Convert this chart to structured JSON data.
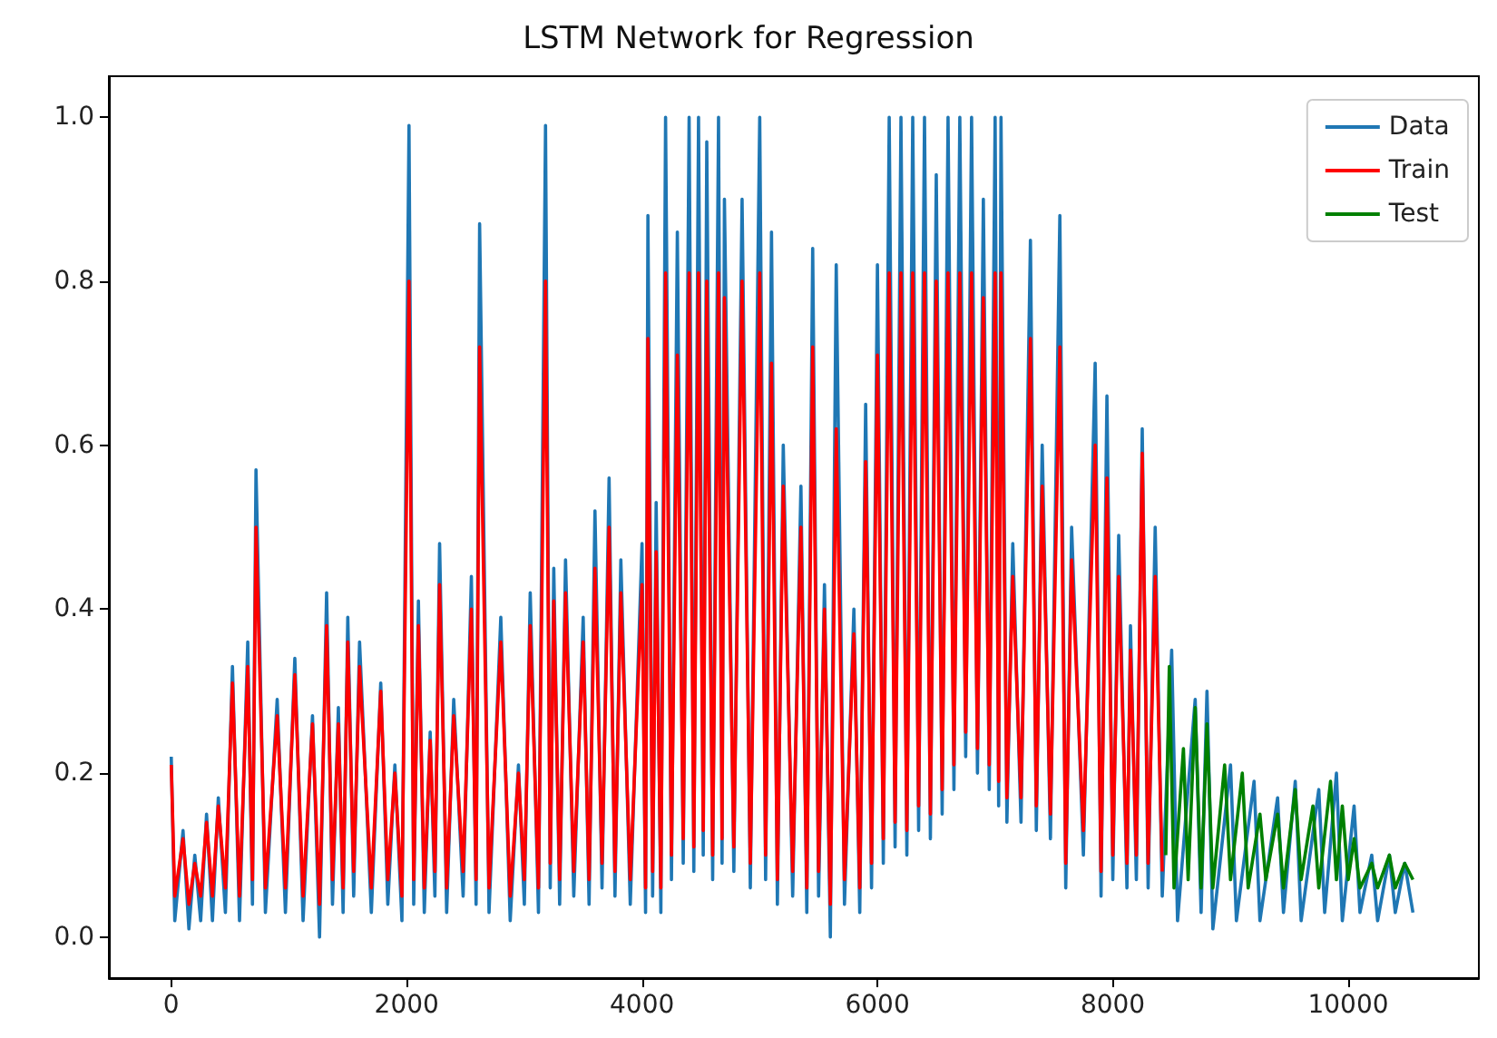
{
  "chart_data": {
    "type": "line",
    "title": "LSTM Network for Regression",
    "xlim": [
      -530,
      11110
    ],
    "xticks": [
      0,
      2000,
      4000,
      6000,
      8000,
      10000
    ],
    "ylim": [
      -0.05,
      1.05
    ],
    "yticks": [
      {
        "value": 0,
        "label": "0.0"
      },
      {
        "value": 0.2,
        "label": "0.2"
      },
      {
        "value": 0.4,
        "label": "0.4"
      },
      {
        "value": 0.6,
        "label": "0.6"
      },
      {
        "value": 0.8,
        "label": "0.8"
      },
      {
        "value": 1,
        "label": "1.0"
      }
    ],
    "grid": false,
    "legend": "top right",
    "series": [
      {
        "name": "Data",
        "color": "#1f77b4",
        "x": [
          0,
          30,
          100,
          150,
          200,
          250,
          300,
          350,
          400,
          460,
          520,
          580,
          650,
          690,
          720,
          800,
          900,
          970,
          1050,
          1120,
          1200,
          1260,
          1320,
          1370,
          1420,
          1460,
          1500,
          1550,
          1600,
          1700,
          1780,
          1840,
          1900,
          1960,
          2020,
          2060,
          2100,
          2150,
          2200,
          2240,
          2280,
          2340,
          2400,
          2480,
          2550,
          2590,
          2620,
          2700,
          2800,
          2880,
          2950,
          3000,
          3050,
          3120,
          3180,
          3220,
          3250,
          3300,
          3350,
          3420,
          3500,
          3550,
          3600,
          3660,
          3720,
          3770,
          3820,
          3900,
          4000,
          4030,
          4050,
          4090,
          4120,
          4160,
          4200,
          4250,
          4300,
          4350,
          4400,
          4440,
          4480,
          4520,
          4550,
          4600,
          4650,
          4680,
          4700,
          4780,
          4850,
          4920,
          5000,
          5050,
          5100,
          5150,
          5200,
          5280,
          5350,
          5400,
          5450,
          5500,
          5550,
          5600,
          5650,
          5720,
          5800,
          5850,
          5900,
          5950,
          6000,
          6050,
          6100,
          6150,
          6200,
          6250,
          6300,
          6350,
          6400,
          6450,
          6500,
          6550,
          6600,
          6650,
          6700,
          6750,
          6800,
          6850,
          6900,
          6950,
          7000,
          7030,
          7050,
          7100,
          7150,
          7220,
          7300,
          7350,
          7400,
          7470,
          7550,
          7600,
          7650,
          7750,
          7850,
          7900,
          7950,
          8000,
          8050,
          8120,
          8150,
          8200,
          8250,
          8300,
          8360,
          8420,
          8500,
          8550,
          8700,
          8750,
          8800,
          8850,
          9000,
          9050,
          9200,
          9250,
          9400,
          9450,
          9550,
          9600,
          9750,
          9800,
          9900,
          9950,
          10050,
          10100,
          10200,
          10250,
          10350,
          10400,
          10480,
          10550
        ],
        "values": [
          0.22,
          0.02,
          0.13,
          0.01,
          0.1,
          0.02,
          0.15,
          0.02,
          0.17,
          0.03,
          0.33,
          0.02,
          0.36,
          0.04,
          0.57,
          0.03,
          0.29,
          0.03,
          0.34,
          0.02,
          0.27,
          0.0,
          0.42,
          0.04,
          0.28,
          0.03,
          0.39,
          0.05,
          0.36,
          0.03,
          0.31,
          0.04,
          0.21,
          0.02,
          0.99,
          0.04,
          0.41,
          0.03,
          0.25,
          0.05,
          0.48,
          0.03,
          0.29,
          0.05,
          0.44,
          0.04,
          0.87,
          0.03,
          0.39,
          0.02,
          0.21,
          0.04,
          0.42,
          0.03,
          0.99,
          0.06,
          0.45,
          0.04,
          0.46,
          0.05,
          0.39,
          0.04,
          0.52,
          0.06,
          0.56,
          0.05,
          0.46,
          0.04,
          0.48,
          0.03,
          0.88,
          0.05,
          0.53,
          0.03,
          1.0,
          0.07,
          0.86,
          0.09,
          1.0,
          0.08,
          1.0,
          0.1,
          0.97,
          0.07,
          1.0,
          0.09,
          0.9,
          0.08,
          0.9,
          0.06,
          1.0,
          0.07,
          0.86,
          0.04,
          0.6,
          0.05,
          0.55,
          0.03,
          0.84,
          0.05,
          0.43,
          0.0,
          0.82,
          0.04,
          0.4,
          0.03,
          0.65,
          0.06,
          0.82,
          0.09,
          1.0,
          0.11,
          1.0,
          0.1,
          1.0,
          0.13,
          1.0,
          0.12,
          0.93,
          0.15,
          1.0,
          0.18,
          1.0,
          0.22,
          1.0,
          0.2,
          0.9,
          0.18,
          1.0,
          0.16,
          1.0,
          0.14,
          0.48,
          0.14,
          0.85,
          0.13,
          0.6,
          0.12,
          0.88,
          0.06,
          0.5,
          0.1,
          0.7,
          0.05,
          0.66,
          0.07,
          0.49,
          0.06,
          0.38,
          0.07,
          0.62,
          0.06,
          0.5,
          0.05,
          0.35,
          0.02,
          0.29,
          0.03,
          0.3,
          0.01,
          0.21,
          0.02,
          0.19,
          0.02,
          0.17,
          0.03,
          0.19,
          0.02,
          0.18,
          0.03,
          0.2,
          0.02,
          0.16,
          0.03,
          0.1,
          0.02,
          0.1,
          0.03,
          0.09,
          0.03
        ]
      },
      {
        "name": "Train",
        "color": "#ff0000",
        "x": [
          0,
          30,
          100,
          150,
          200,
          250,
          300,
          350,
          400,
          460,
          520,
          580,
          650,
          690,
          720,
          800,
          900,
          970,
          1050,
          1120,
          1200,
          1260,
          1320,
          1370,
          1420,
          1460,
          1500,
          1550,
          1600,
          1700,
          1780,
          1840,
          1900,
          1960,
          2020,
          2060,
          2100,
          2150,
          2200,
          2240,
          2280,
          2340,
          2400,
          2480,
          2550,
          2590,
          2620,
          2700,
          2800,
          2880,
          2950,
          3000,
          3050,
          3120,
          3180,
          3220,
          3250,
          3300,
          3350,
          3420,
          3500,
          3550,
          3600,
          3660,
          3720,
          3770,
          3820,
          3900,
          4000,
          4030,
          4050,
          4090,
          4120,
          4160,
          4200,
          4250,
          4300,
          4350,
          4400,
          4440,
          4480,
          4520,
          4550,
          4600,
          4650,
          4680,
          4700,
          4780,
          4850,
          4920,
          5000,
          5050,
          5100,
          5150,
          5200,
          5280,
          5350,
          5400,
          5450,
          5500,
          5550,
          5600,
          5650,
          5720,
          5800,
          5850,
          5900,
          5950,
          6000,
          6050,
          6100,
          6150,
          6200,
          6250,
          6300,
          6350,
          6400,
          6450,
          6500,
          6550,
          6600,
          6650,
          6700,
          6750,
          6800,
          6850,
          6900,
          6950,
          7000,
          7030,
          7050,
          7100,
          7150,
          7220,
          7300,
          7350,
          7400,
          7470,
          7550,
          7600,
          7650,
          7750,
          7850,
          7900,
          7950,
          8000,
          8050,
          8120,
          8150,
          8200,
          8250,
          8300,
          8360,
          8420
        ],
        "values": [
          0.21,
          0.05,
          0.12,
          0.04,
          0.09,
          0.05,
          0.14,
          0.05,
          0.16,
          0.06,
          0.31,
          0.05,
          0.33,
          0.07,
          0.5,
          0.06,
          0.27,
          0.06,
          0.32,
          0.05,
          0.26,
          0.04,
          0.38,
          0.07,
          0.26,
          0.06,
          0.36,
          0.08,
          0.33,
          0.06,
          0.3,
          0.07,
          0.2,
          0.05,
          0.8,
          0.07,
          0.38,
          0.06,
          0.24,
          0.08,
          0.43,
          0.06,
          0.27,
          0.08,
          0.4,
          0.07,
          0.72,
          0.06,
          0.36,
          0.05,
          0.2,
          0.07,
          0.38,
          0.06,
          0.8,
          0.09,
          0.41,
          0.07,
          0.42,
          0.08,
          0.36,
          0.07,
          0.45,
          0.09,
          0.5,
          0.08,
          0.42,
          0.07,
          0.43,
          0.06,
          0.73,
          0.08,
          0.47,
          0.06,
          0.81,
          0.1,
          0.71,
          0.12,
          0.81,
          0.11,
          0.81,
          0.13,
          0.8,
          0.1,
          0.81,
          0.12,
          0.78,
          0.11,
          0.8,
          0.09,
          0.81,
          0.1,
          0.7,
          0.07,
          0.55,
          0.08,
          0.5,
          0.06,
          0.72,
          0.08,
          0.4,
          0.04,
          0.62,
          0.07,
          0.37,
          0.06,
          0.58,
          0.09,
          0.71,
          0.12,
          0.81,
          0.14,
          0.81,
          0.13,
          0.81,
          0.16,
          0.81,
          0.15,
          0.8,
          0.18,
          0.81,
          0.21,
          0.81,
          0.25,
          0.81,
          0.23,
          0.78,
          0.21,
          0.81,
          0.19,
          0.81,
          0.17,
          0.44,
          0.17,
          0.73,
          0.16,
          0.55,
          0.15,
          0.72,
          0.09,
          0.46,
          0.13,
          0.6,
          0.08,
          0.56,
          0.1,
          0.44,
          0.09,
          0.35,
          0.1,
          0.59,
          0.09,
          0.44,
          0.08
        ]
      },
      {
        "name": "Test",
        "color": "#008000",
        "x": [
          8450,
          8480,
          8520,
          8600,
          8640,
          8700,
          8750,
          8800,
          8850,
          8950,
          9000,
          9100,
          9150,
          9250,
          9300,
          9400,
          9450,
          9550,
          9600,
          9700,
          9750,
          9850,
          9900,
          9950,
          10000,
          10050,
          10100,
          10200,
          10250,
          10350,
          10400,
          10480,
          10550
        ],
        "values": [
          0.1,
          0.33,
          0.06,
          0.23,
          0.07,
          0.28,
          0.06,
          0.26,
          0.06,
          0.21,
          0.07,
          0.2,
          0.06,
          0.15,
          0.07,
          0.15,
          0.06,
          0.18,
          0.07,
          0.16,
          0.06,
          0.19,
          0.07,
          0.16,
          0.07,
          0.12,
          0.06,
          0.09,
          0.06,
          0.1,
          0.06,
          0.09,
          0.07
        ]
      }
    ]
  }
}
